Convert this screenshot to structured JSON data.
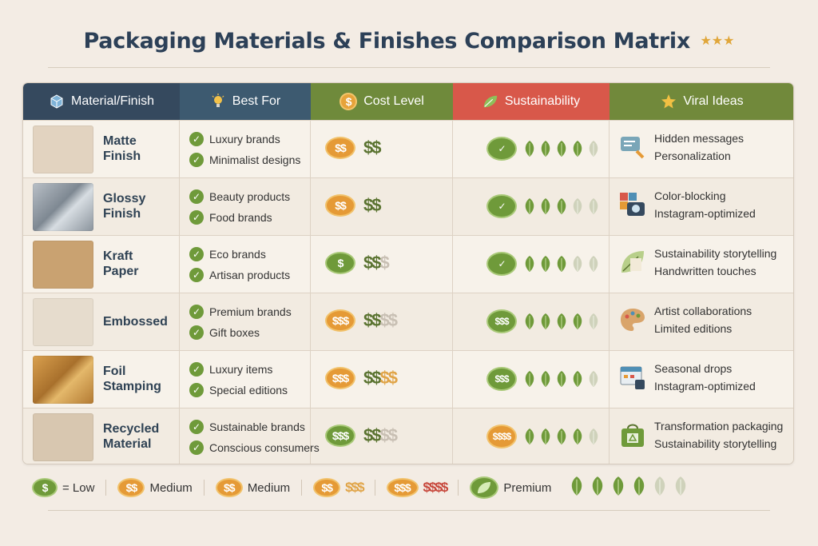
{
  "title": "Packaging Materials & Finishes Comparison Matrix",
  "title_stars": "★★★",
  "headers": {
    "material": "Material/Finish",
    "best_for": "Best For",
    "cost": "Cost Level",
    "sustainability": "Sustainability",
    "viral": "Viral Ideas"
  },
  "rows": [
    {
      "name": "Matte Finish",
      "best_for": [
        "Luxury brands",
        "Minimalist designs"
      ],
      "cost_badge": "$$",
      "cost_badge_color": "orange",
      "cost_level": 2,
      "cost_max": 2,
      "sus_badge": "✓",
      "sus_badge_color": "green",
      "sus_leaves": 4,
      "sus_total": 5,
      "viral": [
        "Hidden messages",
        "Personalization"
      ],
      "swatch": "#e2d3c0",
      "viral_icon": "chat-bubble-icon"
    },
    {
      "name": "Glossy Finish",
      "best_for": [
        "Beauty products",
        "Food brands"
      ],
      "cost_badge": "$$",
      "cost_badge_color": "orange",
      "cost_level": 2,
      "cost_max": 2,
      "sus_badge": "✓",
      "sus_badge_color": "green",
      "sus_leaves": 3,
      "sus_total": 5,
      "viral": [
        "Color-blocking",
        "Instagram-optimized"
      ],
      "swatch": "#9aa3ab",
      "viral_icon": "camera-blocks-icon"
    },
    {
      "name": "Kraft Paper",
      "best_for": [
        "Eco brands",
        "Artisan products"
      ],
      "cost_badge": "$",
      "cost_badge_color": "green",
      "cost_level": 2,
      "cost_max": 3,
      "sus_badge": "✓",
      "sus_badge_color": "green",
      "sus_leaves": 3,
      "sus_total": 5,
      "viral": [
        "Sustainability storytelling",
        "Handwritten touches"
      ],
      "swatch": "#c9a271",
      "viral_icon": "leaf-paper-icon"
    },
    {
      "name": "Embossed",
      "best_for": [
        "Premium brands",
        "Gift boxes"
      ],
      "cost_badge": "$$$",
      "cost_badge_color": "orange",
      "cost_level": 2,
      "cost_max": 4,
      "sus_badge": "$$$",
      "sus_badge_color": "green",
      "sus_leaves": 4,
      "sus_total": 5,
      "viral": [
        "Artist collaborations",
        "Limited editions"
      ],
      "swatch": "#e6dccd",
      "viral_icon": "palette-icon"
    },
    {
      "name": "Foil Stamping",
      "best_for": [
        "Luxury items",
        "Special editions"
      ],
      "cost_badge": "$$$",
      "cost_badge_color": "orange",
      "cost_level": 2,
      "cost_max": 4,
      "sus_badge": "$$$",
      "sus_badge_color": "green",
      "sus_leaves": 4,
      "sus_total": 5,
      "viral": [
        "Seasonal drops",
        "Instagram-optimized"
      ],
      "swatch": "#c08a3e",
      "viral_icon": "calendar-icon"
    },
    {
      "name": "Recycled Material",
      "best_for": [
        "Sustainable brands",
        "Conscious consumers"
      ],
      "cost_badge": "$$$",
      "cost_badge_color": "green",
      "cost_level": 2,
      "cost_max": 4,
      "sus_badge": "$$$$",
      "sus_badge_color": "orange",
      "sus_leaves": 4,
      "sus_total": 5,
      "viral": [
        "Transformation packaging",
        "Sustainability storytelling"
      ],
      "swatch": "#d8c7b0",
      "viral_icon": "recycle-bag-icon"
    }
  ],
  "legend": {
    "low_badge": "$",
    "low_label": "= Low",
    "medium_badge_1": "$$",
    "medium_label_1": "Medium",
    "medium_badge_2": "$$",
    "medium_label_2": "Medium",
    "high_badge": "$$",
    "high_value": "$$$",
    "premium_badge": "$$$",
    "premium_value": "$$$$",
    "premium_label": "Premium",
    "leaf_count": 6,
    "leaf_on": 4
  },
  "colors": {
    "navy": "#35495e",
    "olive": "#6f8a3b",
    "coral": "#d8584a",
    "leaf": "#6f9a3a",
    "coin": "#e59a36"
  }
}
